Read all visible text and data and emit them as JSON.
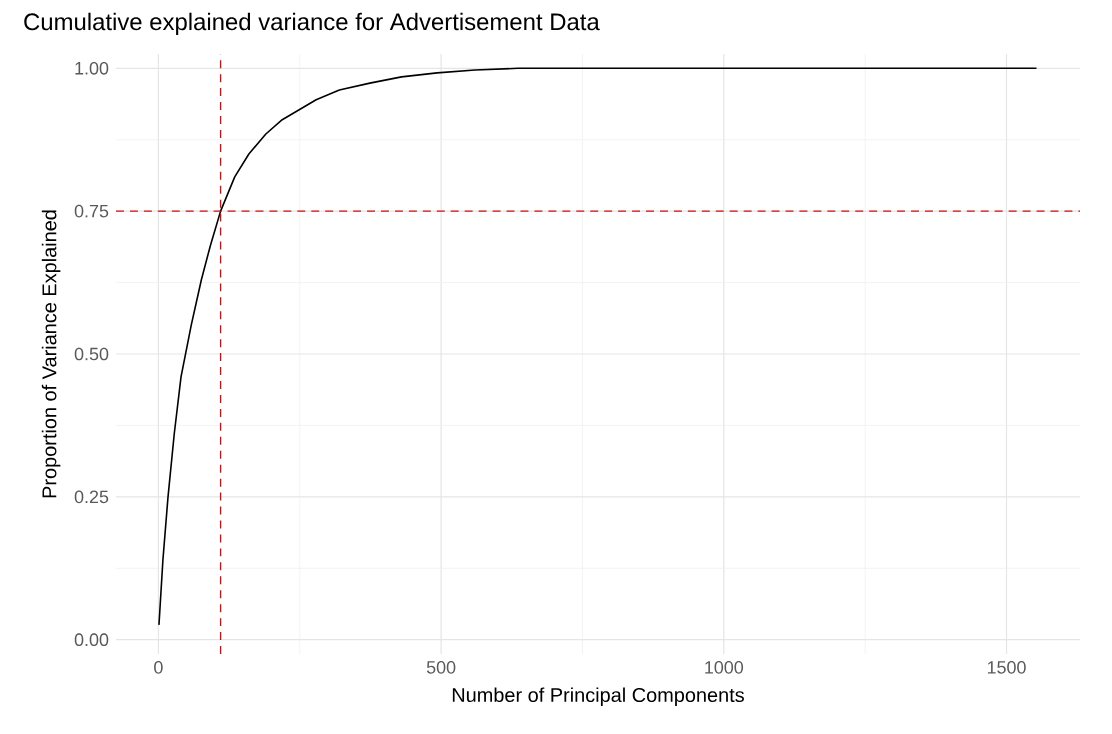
{
  "chart_data": {
    "type": "line",
    "title": "Cumulative explained variance for Advertisement Data",
    "xlabel": "Number of Principal Components",
    "ylabel": "Proportion of Variance Explained",
    "x": [
      1,
      8,
      17,
      28,
      40,
      58,
      76,
      92,
      110,
      135,
      160,
      190,
      219,
      279,
      320,
      374,
      430,
      493,
      560,
      636,
      800,
      1000,
      1200,
      1400,
      1553
    ],
    "series": [
      {
        "color": "#000000",
        "values": [
          0.026,
          0.14,
          0.25,
          0.36,
          0.46,
          0.55,
          0.63,
          0.69,
          0.75,
          0.81,
          0.85,
          0.885,
          0.91,
          0.945,
          0.962,
          0.974,
          0.985,
          0.992,
          0.997,
          1.0,
          1.0,
          1.0,
          1.0,
          1.0,
          1.0
        ]
      }
    ],
    "xlim": [
      -75,
      1630
    ],
    "ylim": [
      -0.025,
      1.025
    ],
    "xticks": [
      0,
      500,
      1000,
      1500
    ],
    "yticks": [
      {
        "value": 0,
        "label": "0.00"
      },
      {
        "value": 0.25,
        "label": "0.25"
      },
      {
        "value": 0.5,
        "label": "0.50"
      },
      {
        "value": 0.75,
        "label": "0.75"
      },
      {
        "value": 1,
        "label": "1.00"
      }
    ],
    "grid": true,
    "marker": "none",
    "line_style": "solid",
    "ref_lines": [
      {
        "axis": "x",
        "value": 110,
        "color": "#cc1111",
        "line_style": "dashed"
      },
      {
        "axis": "y",
        "value": 0.75,
        "color": "#cc1111",
        "line_style": "dashed"
      }
    ]
  }
}
